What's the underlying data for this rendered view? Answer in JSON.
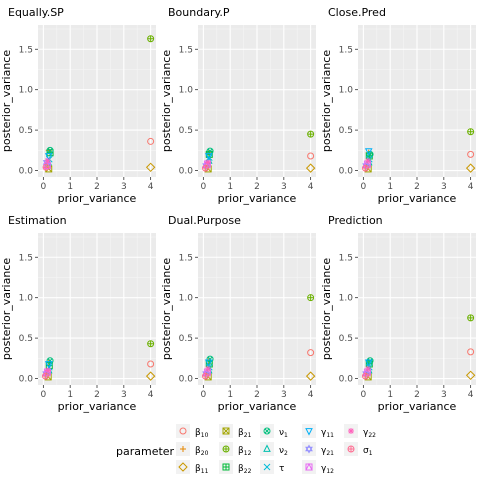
{
  "chart_data": [
    {
      "type": "scatter",
      "title": "Equally.SP",
      "xlabel": "prior_variance",
      "ylabel": "posterior_variance",
      "xlim": [
        -0.2,
        4.2
      ],
      "ylim": [
        -0.08,
        1.8
      ],
      "xticks": [
        0,
        1,
        2,
        3,
        4
      ],
      "yticks": [
        0.0,
        0.5,
        1.0,
        1.5
      ],
      "points": [
        {
          "param": "b10",
          "x": 4.0,
          "y": 0.36
        },
        {
          "param": "b12",
          "x": 4.0,
          "y": 1.63
        },
        {
          "param": "b11",
          "x": 4.0,
          "y": 0.04
        },
        {
          "param": "b20",
          "x": 0.2,
          "y": 0.25
        },
        {
          "param": "b21",
          "x": 0.2,
          "y": 0.02
        },
        {
          "param": "b22",
          "x": 0.25,
          "y": 0.22
        },
        {
          "param": "nu1",
          "x": 0.25,
          "y": 0.25
        },
        {
          "param": "nu2",
          "x": 0.18,
          "y": 0.1
        },
        {
          "param": "tau",
          "x": 0.22,
          "y": 0.14
        },
        {
          "param": "g11",
          "x": 0.2,
          "y": 0.18
        },
        {
          "param": "g21",
          "x": 0.12,
          "y": 0.1
        },
        {
          "param": "g12",
          "x": 0.15,
          "y": 0.06
        },
        {
          "param": "g22",
          "x": 0.16,
          "y": 0.12
        },
        {
          "param": "s1",
          "x": 0.1,
          "y": 0.04
        }
      ]
    },
    {
      "type": "scatter",
      "title": "Boundary.P",
      "xlabel": "prior_variance",
      "ylabel": "posterior_variance",
      "xlim": [
        -0.2,
        4.2
      ],
      "ylim": [
        -0.08,
        1.8
      ],
      "xticks": [
        0,
        1,
        2,
        3,
        4
      ],
      "yticks": [
        0.0,
        0.5,
        1.0,
        1.5
      ],
      "points": [
        {
          "param": "b10",
          "x": 4.0,
          "y": 0.18
        },
        {
          "param": "b12",
          "x": 4.0,
          "y": 0.45
        },
        {
          "param": "b11",
          "x": 4.0,
          "y": 0.03
        },
        {
          "param": "b20",
          "x": 0.2,
          "y": 0.22
        },
        {
          "param": "b21",
          "x": 0.18,
          "y": 0.02
        },
        {
          "param": "b22",
          "x": 0.22,
          "y": 0.2
        },
        {
          "param": "nu1",
          "x": 0.25,
          "y": 0.24
        },
        {
          "param": "nu2",
          "x": 0.2,
          "y": 0.12
        },
        {
          "param": "tau",
          "x": 0.22,
          "y": 0.16
        },
        {
          "param": "g11",
          "x": 0.2,
          "y": 0.18
        },
        {
          "param": "g21",
          "x": 0.1,
          "y": 0.06
        },
        {
          "param": "g12",
          "x": 0.15,
          "y": 0.08
        },
        {
          "param": "g22",
          "x": 0.17,
          "y": 0.1
        },
        {
          "param": "s1",
          "x": 0.08,
          "y": 0.03
        }
      ]
    },
    {
      "type": "scatter",
      "title": "Close.Pred",
      "xlabel": "prior_variance",
      "ylabel": "posterior_variance",
      "xlim": [
        -0.2,
        4.2
      ],
      "ylim": [
        -0.08,
        1.8
      ],
      "xticks": [
        0,
        1,
        2,
        3,
        4
      ],
      "yticks": [
        0.0,
        0.5,
        1.0,
        1.5
      ],
      "points": [
        {
          "param": "b10",
          "x": 4.0,
          "y": 0.2
        },
        {
          "param": "b12",
          "x": 4.0,
          "y": 0.48
        },
        {
          "param": "b11",
          "x": 4.0,
          "y": 0.03
        },
        {
          "param": "b20",
          "x": 0.2,
          "y": 0.22
        },
        {
          "param": "b21",
          "x": 0.18,
          "y": 0.02
        },
        {
          "param": "b22",
          "x": 0.22,
          "y": 0.18
        },
        {
          "param": "nu1",
          "x": 0.25,
          "y": 0.2
        },
        {
          "param": "nu2",
          "x": 0.2,
          "y": 0.1
        },
        {
          "param": "tau",
          "x": 0.22,
          "y": 0.14
        },
        {
          "param": "g11",
          "x": 0.2,
          "y": 0.24
        },
        {
          "param": "g21",
          "x": 0.1,
          "y": 0.06
        },
        {
          "param": "g12",
          "x": 0.15,
          "y": 0.08
        },
        {
          "param": "g22",
          "x": 0.17,
          "y": 0.12
        },
        {
          "param": "s1",
          "x": 0.08,
          "y": 0.03
        }
      ]
    },
    {
      "type": "scatter",
      "title": "Estimation",
      "xlabel": "prior_variance",
      "ylabel": "posterior_variance",
      "xlim": [
        -0.2,
        4.2
      ],
      "ylim": [
        -0.08,
        1.8
      ],
      "xticks": [
        0,
        1,
        2,
        3,
        4
      ],
      "yticks": [
        0.0,
        0.5,
        1.0,
        1.5
      ],
      "points": [
        {
          "param": "b10",
          "x": 4.0,
          "y": 0.18
        },
        {
          "param": "b12",
          "x": 4.0,
          "y": 0.43
        },
        {
          "param": "b11",
          "x": 4.0,
          "y": 0.03
        },
        {
          "param": "b20",
          "x": 0.2,
          "y": 0.2
        },
        {
          "param": "b21",
          "x": 0.18,
          "y": 0.02
        },
        {
          "param": "b22",
          "x": 0.22,
          "y": 0.16
        },
        {
          "param": "nu1",
          "x": 0.25,
          "y": 0.22
        },
        {
          "param": "nu2",
          "x": 0.2,
          "y": 0.1
        },
        {
          "param": "tau",
          "x": 0.22,
          "y": 0.14
        },
        {
          "param": "g11",
          "x": 0.2,
          "y": 0.18
        },
        {
          "param": "g21",
          "x": 0.1,
          "y": 0.06
        },
        {
          "param": "g12",
          "x": 0.15,
          "y": 0.08
        },
        {
          "param": "g22",
          "x": 0.17,
          "y": 0.1
        },
        {
          "param": "s1",
          "x": 0.08,
          "y": 0.03
        }
      ]
    },
    {
      "type": "scatter",
      "title": "Dual.Purpose",
      "xlabel": "prior_variance",
      "ylabel": "posterior_variance",
      "xlim": [
        -0.2,
        4.2
      ],
      "ylim": [
        -0.08,
        1.8
      ],
      "xticks": [
        0,
        1,
        2,
        3,
        4
      ],
      "yticks": [
        0.0,
        0.5,
        1.0,
        1.5
      ],
      "points": [
        {
          "param": "b10",
          "x": 4.0,
          "y": 0.32
        },
        {
          "param": "b12",
          "x": 4.0,
          "y": 1.0
        },
        {
          "param": "b11",
          "x": 4.0,
          "y": 0.03
        },
        {
          "param": "b20",
          "x": 0.2,
          "y": 0.22
        },
        {
          "param": "b21",
          "x": 0.18,
          "y": 0.02
        },
        {
          "param": "b22",
          "x": 0.22,
          "y": 0.18
        },
        {
          "param": "nu1",
          "x": 0.25,
          "y": 0.24
        },
        {
          "param": "nu2",
          "x": 0.2,
          "y": 0.1
        },
        {
          "param": "tau",
          "x": 0.22,
          "y": 0.14
        },
        {
          "param": "g11",
          "x": 0.2,
          "y": 0.2
        },
        {
          "param": "g21",
          "x": 0.1,
          "y": 0.06
        },
        {
          "param": "g12",
          "x": 0.15,
          "y": 0.08
        },
        {
          "param": "g22",
          "x": 0.17,
          "y": 0.12
        },
        {
          "param": "s1",
          "x": 0.08,
          "y": 0.03
        }
      ]
    },
    {
      "type": "scatter",
      "title": "Prediction",
      "xlabel": "prior_variance",
      "ylabel": "posterior_variance",
      "xlim": [
        -0.2,
        4.2
      ],
      "ylim": [
        -0.08,
        1.8
      ],
      "xticks": [
        0,
        1,
        2,
        3,
        4
      ],
      "yticks": [
        0.0,
        0.5,
        1.0,
        1.5
      ],
      "points": [
        {
          "param": "b10",
          "x": 4.0,
          "y": 0.33
        },
        {
          "param": "b12",
          "x": 4.0,
          "y": 0.75
        },
        {
          "param": "b11",
          "x": 4.0,
          "y": 0.04
        },
        {
          "param": "b20",
          "x": 0.2,
          "y": 0.22
        },
        {
          "param": "b21",
          "x": 0.18,
          "y": 0.02
        },
        {
          "param": "b22",
          "x": 0.22,
          "y": 0.18
        },
        {
          "param": "nu1",
          "x": 0.25,
          "y": 0.22
        },
        {
          "param": "nu2",
          "x": 0.2,
          "y": 0.1
        },
        {
          "param": "tau",
          "x": 0.22,
          "y": 0.14
        },
        {
          "param": "g11",
          "x": 0.2,
          "y": 0.2
        },
        {
          "param": "g21",
          "x": 0.1,
          "y": 0.06
        },
        {
          "param": "g12",
          "x": 0.15,
          "y": 0.08
        },
        {
          "param": "g22",
          "x": 0.17,
          "y": 0.12
        },
        {
          "param": "s1",
          "x": 0.08,
          "y": 0.03
        }
      ]
    }
  ],
  "legend": {
    "title": "parameter",
    "entries": [
      {
        "key": "b10",
        "sym": "β",
        "sub": "10",
        "color": "#F8766D",
        "shape": "circle-open"
      },
      {
        "key": "b20",
        "sym": "β",
        "sub": "20",
        "color": "#E58700",
        "shape": "plus"
      },
      {
        "key": "b11",
        "sym": "β",
        "sub": "11",
        "color": "#C99800",
        "shape": "diamond-open"
      },
      {
        "key": "b21",
        "sym": "β",
        "sub": "21",
        "color": "#A3A500",
        "shape": "square-x"
      },
      {
        "key": "b12",
        "sym": "β",
        "sub": "12",
        "color": "#6BB100",
        "shape": "circle-plus"
      },
      {
        "key": "b22",
        "sym": "β",
        "sub": "22",
        "color": "#00BA38",
        "shape": "square-plus"
      },
      {
        "key": "nu1",
        "sym": "ν",
        "sub": "1",
        "color": "#00BF7D",
        "shape": "circle-x"
      },
      {
        "key": "nu2",
        "sym": "ν",
        "sub": "2",
        "color": "#00C0AF",
        "shape": "triangle-open"
      },
      {
        "key": "tau",
        "sym": "τ",
        "sub": "",
        "color": "#00BCD8",
        "shape": "x"
      },
      {
        "key": "g11",
        "sym": "γ",
        "sub": "11",
        "color": "#00B0F6",
        "shape": "triangle-down-open"
      },
      {
        "key": "g21",
        "sym": "γ",
        "sub": "21",
        "color": "#9590FF",
        "shape": "star-of-david"
      },
      {
        "key": "g12",
        "sym": "γ",
        "sub": "12",
        "color": "#E76BF3",
        "shape": "square-triangle"
      },
      {
        "key": "g22",
        "sym": "γ",
        "sub": "22",
        "color": "#FF62BC",
        "shape": "asterisk"
      },
      {
        "key": "s1",
        "sym": "σ",
        "sub": "1",
        "color": "#FF6C91",
        "shape": "circle-plus"
      }
    ]
  }
}
